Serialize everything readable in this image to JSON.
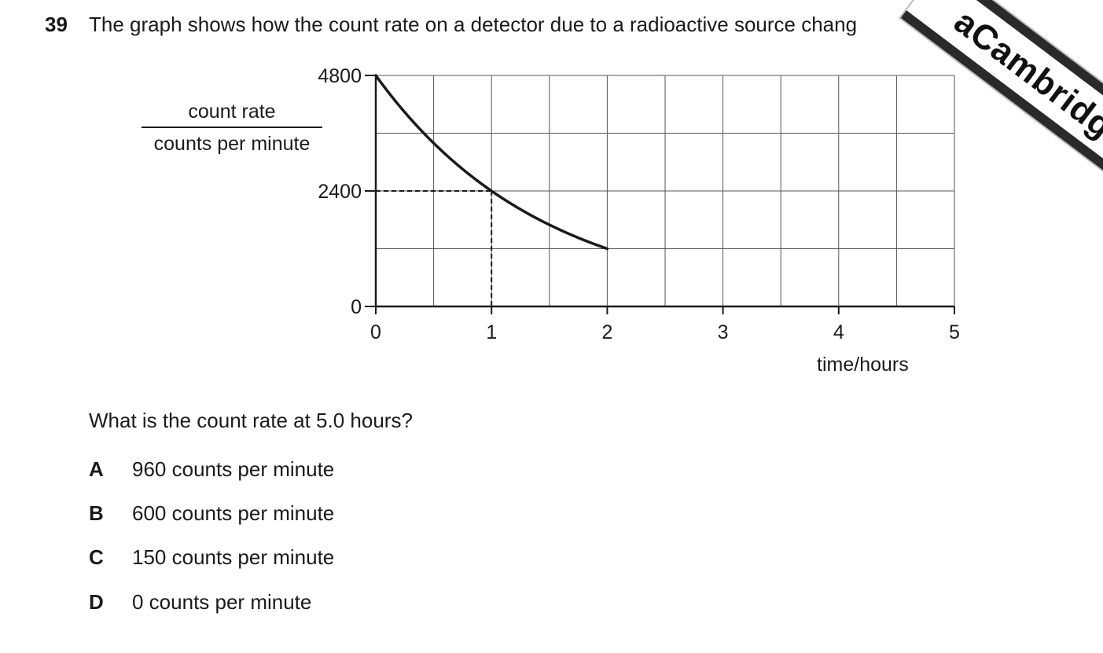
{
  "question": {
    "number": "39",
    "stem": "The graph shows how the count rate on a detector due to a radioactive source chang",
    "prompt": "What is the count rate at 5.0 hours?",
    "options": [
      {
        "letter": "A",
        "text": "960 counts per minute"
      },
      {
        "letter": "B",
        "text": "600 counts per minute"
      },
      {
        "letter": "C",
        "text": "150 counts per minute"
      },
      {
        "letter": "D",
        "text": "0 counts per minute"
      }
    ]
  },
  "watermark": "aCambridge.c",
  "chart_data": {
    "type": "line",
    "xlabel": "time / hours",
    "ylabel": "count rate / counts per minute",
    "ylabel_numerator": "count rate",
    "ylabel_denominator": "counts per minute",
    "xlabel_left": "time",
    "xlabel_right": "hours",
    "xlim": [
      0,
      5
    ],
    "ylim": [
      0,
      4800
    ],
    "x_ticks": [
      0,
      1,
      2,
      3,
      4,
      5
    ],
    "x_tick_labels": [
      "0",
      "1",
      "2",
      "3",
      "4",
      "5"
    ],
    "y_ticks": [
      0,
      2400,
      4800
    ],
    "y_tick_labels": [
      "0",
      "2400",
      "4800"
    ],
    "grid": true,
    "grid_x_step": 0.5,
    "grid_y_step": 1200,
    "series": [
      {
        "x": [
          0,
          0.25,
          0.5,
          0.75,
          1,
          1.25,
          1.5,
          1.75,
          2
        ],
        "y": [
          4800,
          4036,
          3394,
          2854,
          2400,
          2018,
          1697,
          1427,
          1200
        ]
      }
    ],
    "guide_point": {
      "x": 1,
      "y": 2400
    }
  }
}
